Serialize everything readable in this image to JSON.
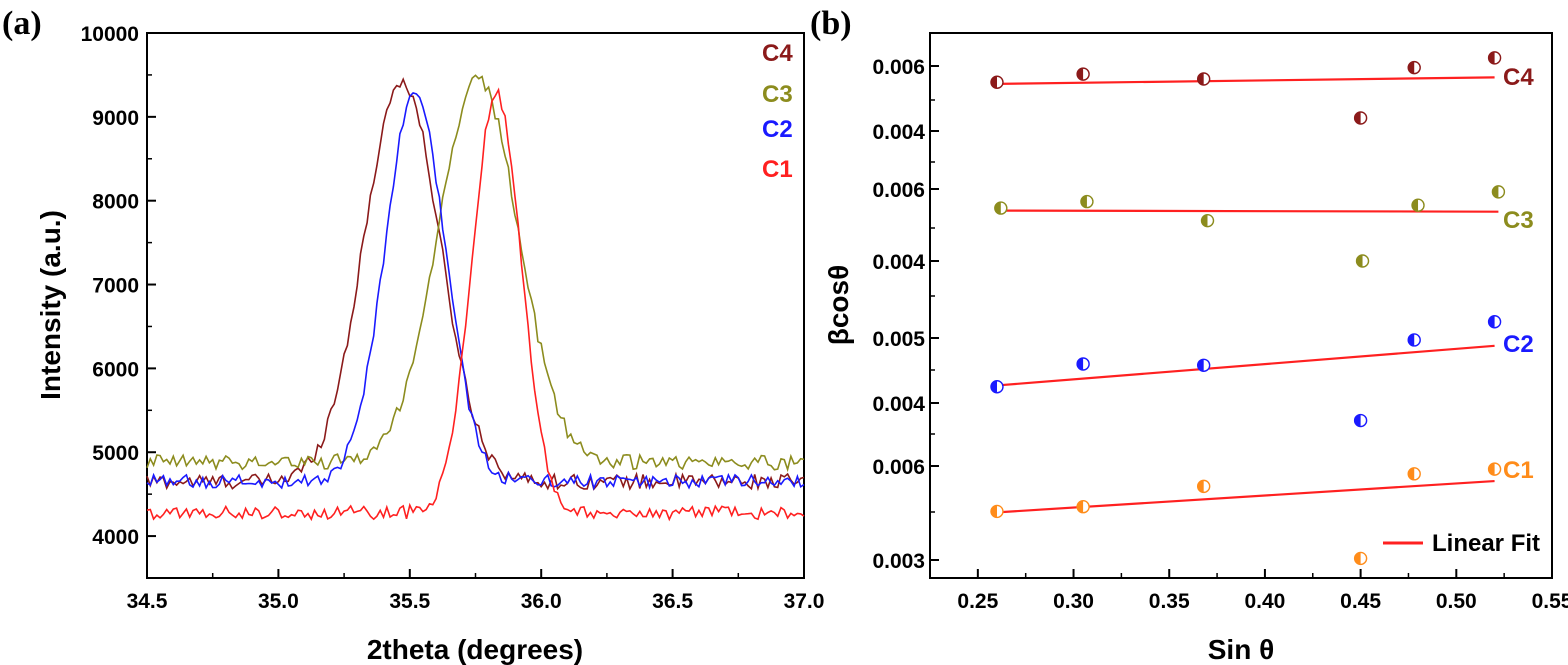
{
  "panel_a_label": "(a)",
  "panel_b_label": "(b)",
  "chart_data": [
    {
      "type": "line",
      "xlabel": "2theta (degrees)",
      "ylabel": "Intensity (a.u.)",
      "xlim": [
        34.5,
        37.0
      ],
      "ylim": [
        3500,
        10000
      ],
      "xticks": [
        "34.5",
        "35.0",
        "35.5",
        "36.0",
        "36.5",
        "37.0"
      ],
      "yticks": [
        "4000",
        "5000",
        "6000",
        "7000",
        "8000",
        "9000",
        "10000"
      ],
      "legend_position": "top-right",
      "series": [
        {
          "name": "C4",
          "color": "#8b1a1a",
          "baseline": 4650,
          "peak_center": 35.47,
          "peak_height": 9420,
          "fwhm": 0.34,
          "noise": 90
        },
        {
          "name": "C3",
          "color": "#8c8c1e",
          "baseline": 4880,
          "peak_center": 35.76,
          "peak_height": 9450,
          "fwhm": 0.36,
          "noise": 90
        },
        {
          "name": "C2",
          "color": "#1a1aff",
          "baseline": 4650,
          "peak_center": 35.52,
          "peak_height": 9280,
          "fwhm": 0.27,
          "noise": 80
        },
        {
          "name": "C1",
          "color": "#ff2020",
          "baseline": 4280,
          "peak_center": 35.83,
          "peak_height": 9270,
          "fwhm": 0.22,
          "noise": 80
        }
      ]
    },
    {
      "type": "scatter",
      "xlabel": "Sin θ",
      "ylabel": "βcosθ",
      "xlim": [
        0.225,
        0.55
      ],
      "xticks": [
        "0.25",
        "0.30",
        "0.35",
        "0.40",
        "0.45",
        "0.50",
        "0.55"
      ],
      "legend_entries": [
        "Linear Fit"
      ],
      "legend_position": "bottom-right",
      "fit_color": "#ff2020",
      "groups": [
        {
          "name": "C4",
          "color": "#8b1a1a",
          "yticks": [
            "0.004",
            "0.006"
          ],
          "x": [
            0.26,
            0.305,
            0.368,
            0.45,
            0.478,
            0.52
          ],
          "y": [
            0.0055,
            0.00575,
            0.0056,
            0.0044,
            0.00595,
            0.00625
          ],
          "fit": [
            [
              0.26,
              0.00545
            ],
            [
              0.52,
              0.00565
            ]
          ]
        },
        {
          "name": "C3",
          "color": "#8c8c1e",
          "yticks": [
            "0.004",
            "0.006"
          ],
          "x": [
            0.262,
            0.307,
            0.37,
            0.451,
            0.48,
            0.522
          ],
          "y": [
            0.00547,
            0.00565,
            0.00512,
            0.004,
            0.00555,
            0.00592
          ],
          "fit": [
            [
              0.262,
              0.0054
            ],
            [
              0.522,
              0.00537
            ]
          ]
        },
        {
          "name": "C2",
          "color": "#1a1aff",
          "yticks": [
            "0.004",
            "0.005"
          ],
          "x": [
            0.26,
            0.305,
            0.368,
            0.45,
            0.478,
            0.52
          ],
          "y": [
            0.00425,
            0.0046,
            0.00458,
            0.00373,
            0.00497,
            0.00525
          ],
          "fit": [
            [
              0.26,
              0.00427
            ],
            [
              0.52,
              0.00488
            ]
          ]
        },
        {
          "name": "C1",
          "color": "#ff8c1a",
          "yticks": [
            "0.003",
            "0.006"
          ],
          "x": [
            0.26,
            0.305,
            0.368,
            0.45,
            0.478,
            0.52
          ],
          "y": [
            0.00455,
            0.0047,
            0.00535,
            0.00305,
            0.00575,
            0.0059
          ],
          "fit": [
            [
              0.26,
              0.00452
            ],
            [
              0.52,
              0.00552
            ]
          ]
        }
      ]
    }
  ]
}
